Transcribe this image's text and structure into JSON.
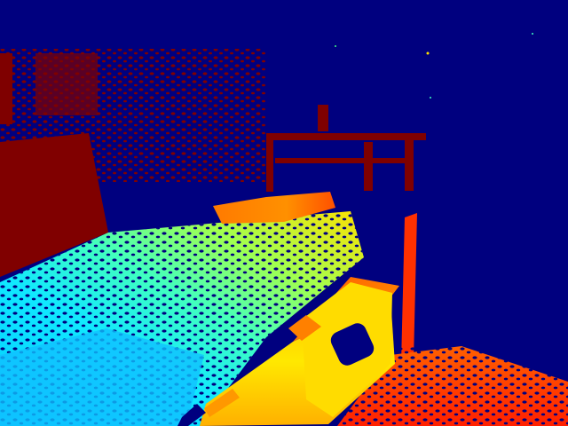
{
  "image": {
    "kind": "depth-map",
    "colormap": "jet",
    "colors": {
      "far": "#00007f",
      "blue": "#0000ff",
      "cyan": "#00d8ff",
      "green": "#40ff80",
      "yellow": "#ffe000",
      "orange": "#ff8000",
      "red": "#ff2a00",
      "near": "#7f0000"
    },
    "objects": [
      "wall-left",
      "floor",
      "bed",
      "box",
      "post",
      "shelf",
      "table"
    ]
  }
}
